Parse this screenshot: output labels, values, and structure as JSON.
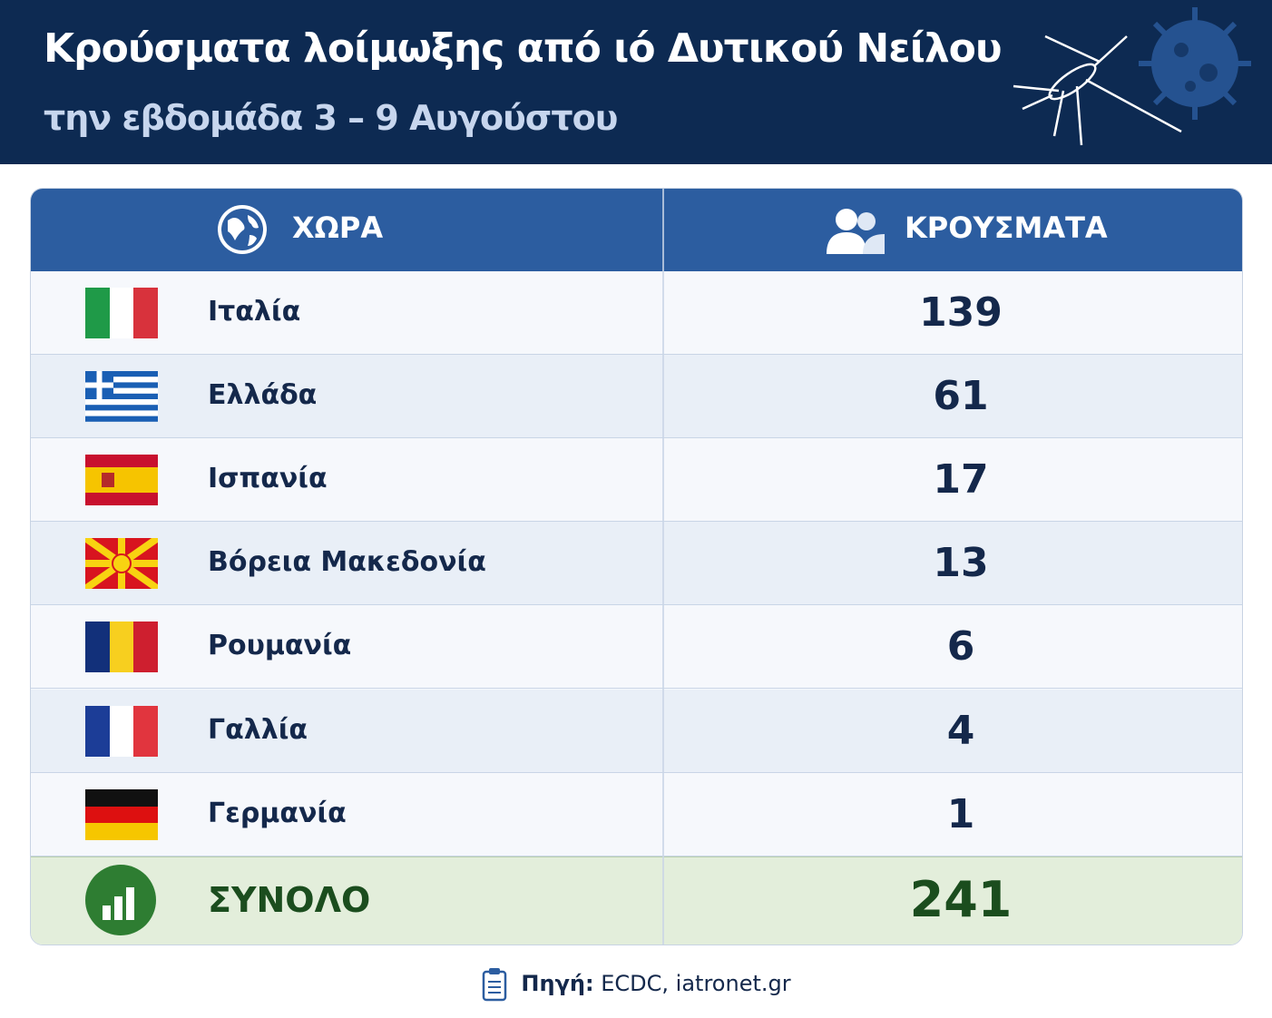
{
  "header": {
    "title": "Κρούσματα λοίμωξης από ιό Δυτικού Νείλου",
    "subtitle": "την εβδομάδα 3 – 9 Αυγούστου"
  },
  "table": {
    "columns": [
      "ΧΩΡΑ",
      "ΚΡΟΥΣΜΑΤΑ"
    ],
    "rows": [
      [
        "Ιταλία",
        "139"
      ],
      [
        "Ελλάδα",
        "61"
      ],
      [
        "Ισπανία",
        "17"
      ],
      [
        "Βόρεια Μακεδονία",
        "13"
      ],
      [
        "Ρουμανία",
        "6"
      ],
      [
        "Γαλλία",
        "4"
      ],
      [
        "Γερμανία",
        "1"
      ]
    ],
    "total": [
      "ΣΥΝΟΛΟ",
      "241"
    ]
  },
  "source": {
    "label": "Πηγή:",
    "text": "ECDC, iatronet.gr"
  }
}
